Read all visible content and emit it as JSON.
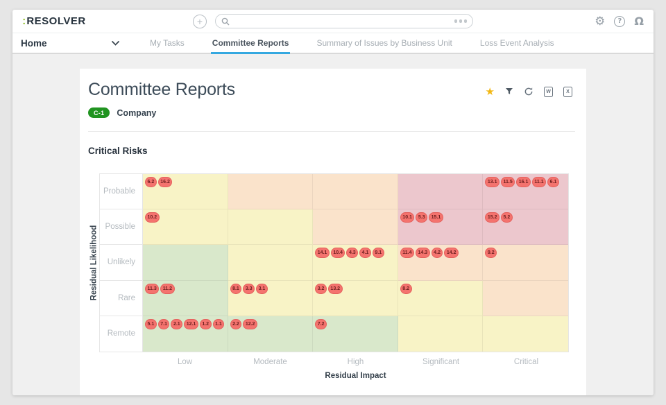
{
  "topbar": {
    "logo": {
      "prefix": ":",
      "text": "RESOLVER"
    },
    "search_placeholder": "",
    "icons": [
      "plus-icon",
      "search-icon",
      "more-options-icon",
      "gear-icon",
      "help-icon",
      "user-icon"
    ]
  },
  "nav": {
    "home_label": "Home",
    "tabs": [
      {
        "label": "My Tasks",
        "active": false
      },
      {
        "label": "Committee Reports",
        "active": true
      },
      {
        "label": "Summary of Issues by Business Unit",
        "active": false
      },
      {
        "label": "Loss Event Analysis",
        "active": false
      }
    ]
  },
  "report": {
    "title": "Committee Reports",
    "badge": {
      "code": "C-1",
      "label": "Company"
    },
    "toolbar_icons": [
      "star-icon",
      "filter-icon",
      "refresh-icon",
      "export-word-icon",
      "export-excel-icon"
    ],
    "export_word_glyph": "W",
    "export_excel_glyph": "X",
    "section_title": "Critical Risks"
  },
  "chart_data": {
    "type": "heatmap",
    "title": "Critical Risks",
    "xlabel": "Residual Impact",
    "ylabel": "Residual Likelihood",
    "columns": [
      "Low",
      "Moderate",
      "High",
      "Significant",
      "Critical"
    ],
    "rows": [
      "Probable",
      "Possible",
      "Unlikely",
      "Rare",
      "Remote"
    ],
    "legend_position": "none",
    "cell_colors": [
      [
        "yellow",
        "orange",
        "orange",
        "red",
        "red"
      ],
      [
        "yellow",
        "yellow",
        "orange",
        "red",
        "red"
      ],
      [
        "green",
        "yellow",
        "yellow",
        "orange",
        "orange"
      ],
      [
        "green",
        "yellow",
        "yellow",
        "yellow",
        "orange"
      ],
      [
        "green",
        "green",
        "green",
        "yellow",
        "yellow"
      ]
    ],
    "cell_values": [
      [
        [
          "6.2",
          "16.2"
        ],
        [],
        [],
        [],
        [
          "13.1",
          "11.5",
          "16.1",
          "11.1",
          "6.1"
        ]
      ],
      [
        [
          "10.2"
        ],
        [],
        [],
        [
          "10.1",
          "5.3",
          "15.1"
        ],
        [
          "15.2",
          "5.2"
        ]
      ],
      [
        [],
        [],
        [
          "14.1",
          "10.4",
          "4.3",
          "4.1",
          "9.1"
        ],
        [
          "11.4",
          "14.3",
          "4.2",
          "14.2"
        ],
        [
          "9.2"
        ]
      ],
      [
        [
          "11.3",
          "11.2"
        ],
        [
          "8.1",
          "3.3",
          "3.1"
        ],
        [
          "3.2",
          "13.2"
        ],
        [
          "8.2"
        ],
        []
      ],
      [
        [
          "5.1",
          "7.1",
          "2.1",
          "12.1",
          "1.2",
          "1.1"
        ],
        [
          "2.2",
          "12.2"
        ],
        [
          "7.2"
        ],
        [],
        []
      ]
    ],
    "palette": {
      "green": "#d9e8cb",
      "yellow": "#f8f3c6",
      "orange": "#fae3cb",
      "red": "#ecc7cd",
      "bubble_bg": "#f4736e",
      "bubble_text": "#6e2020"
    }
  },
  "colors": {
    "accent_blue": "#35a8e0",
    "brand_green": "#9bc83d",
    "badge_green": "#219421",
    "star_gold": "#f2b713"
  }
}
